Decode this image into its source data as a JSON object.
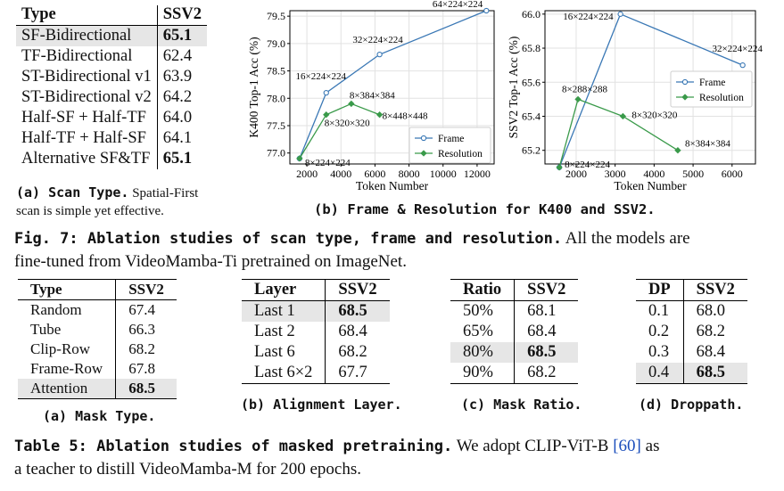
{
  "top_table": {
    "headers": [
      "Type",
      "SSV2"
    ],
    "rows": [
      {
        "type": "SF-Bidirectional",
        "ssv2": "65.1",
        "best": true,
        "highlight": true
      },
      {
        "type": "TF-Bidirectional",
        "ssv2": "62.4"
      },
      {
        "type": "ST-Bidirectional v1",
        "ssv2": "63.9"
      },
      {
        "type": "ST-Bidirectional v2",
        "ssv2": "64.2"
      },
      {
        "type": "Half-SF + Half-TF",
        "ssv2": "64.0"
      },
      {
        "type": "Half-TF + Half-SF",
        "ssv2": "64.1"
      },
      {
        "type": "Alternative SF&TF",
        "ssv2": "65.1",
        "best": true
      }
    ],
    "caption_label": "(a) Scan Type.",
    "caption_line1": "Spatial-First",
    "caption_line2": "scan is simple yet effective."
  },
  "chart_caption": "(b) Frame & Resolution for K400 and SSV2.",
  "chart_data": [
    {
      "type": "line",
      "xlabel": "Token Number",
      "ylabel": "K400 Top-1 Acc (%)",
      "xlim": [
        1000,
        13000
      ],
      "ylim": [
        76.8,
        79.6
      ],
      "xticks": [
        "2000",
        "4000",
        "6000",
        "8000",
        "10000",
        "12000"
      ],
      "yticks": [
        "77.0",
        "77.5",
        "78.0",
        "78.5",
        "79.0",
        "79.5"
      ],
      "legend": "bottom-right",
      "series": [
        {
          "name": "Frame",
          "color": "#3a78b5",
          "x": [
            1568,
            3136,
            6272,
            12544
          ],
          "y": [
            76.9,
            78.1,
            78.8,
            79.6
          ],
          "labels": [
            "8×224×224",
            "16×224×224",
            "32×224×224",
            "64×224×224"
          ]
        },
        {
          "name": "Resolution",
          "color": "#3a9a4a",
          "x": [
            1568,
            3136,
            4608,
            6272
          ],
          "y": [
            76.9,
            77.7,
            77.9,
            77.7
          ],
          "labels": [
            "",
            "8×320×320",
            "8×384×384",
            "8×448×448"
          ]
        }
      ]
    },
    {
      "type": "line",
      "xlabel": "Token Number",
      "ylabel": "SSV2 Top-1 Acc (%)",
      "xlim": [
        1200,
        6600
      ],
      "ylim": [
        65.12,
        66.02
      ],
      "xticks": [
        "2000",
        "3000",
        "4000",
        "5000",
        "6000"
      ],
      "yticks": [
        "65.2",
        "65.4",
        "65.6",
        "65.8",
        "66.0"
      ],
      "legend": "middle-right",
      "series": [
        {
          "name": "Frame",
          "color": "#3a78b5",
          "x": [
            1568,
            3136,
            6272
          ],
          "y": [
            65.1,
            66.0,
            65.7
          ],
          "labels": [
            "8×224×224",
            "16×224×224",
            "32×224×224"
          ]
        },
        {
          "name": "Resolution",
          "color": "#3a9a4a",
          "x": [
            1568,
            2048,
            3200,
            4608
          ],
          "y": [
            65.1,
            65.5,
            65.4,
            65.2
          ],
          "labels": [
            "",
            "8×288×288",
            "8×320×320",
            "8×384×384"
          ]
        }
      ]
    }
  ],
  "fig_caption": {
    "label": "Fig. 7: Ablation studies of scan type, frame and resolution.",
    "text1": "All the models are",
    "text2": "fine-tuned from VideoMamba-Ti pretrained on ImageNet."
  },
  "mask_type": {
    "headers": [
      "Type",
      "SSV2"
    ],
    "rows": [
      {
        "k": "Random",
        "v": "67.4"
      },
      {
        "k": "Tube",
        "v": "66.3"
      },
      {
        "k": "Clip-Row",
        "v": "68.2"
      },
      {
        "k": "Frame-Row",
        "v": "67.8"
      },
      {
        "k": "Attention",
        "v": "68.5",
        "best": true,
        "highlight": true
      }
    ],
    "caption": "(a) Mask Type."
  },
  "align_layer": {
    "headers": [
      "Layer",
      "SSV2"
    ],
    "rows": [
      {
        "k": "Last 1",
        "v": "68.5",
        "best": true,
        "highlight": true
      },
      {
        "k": "Last 2",
        "v": "68.4"
      },
      {
        "k": "Last 6",
        "v": "68.2"
      },
      {
        "k": "Last 6×2",
        "v": "67.7"
      }
    ],
    "caption": "(b) Alignment Layer."
  },
  "mask_ratio": {
    "headers": [
      "Ratio",
      "SSV2"
    ],
    "rows": [
      {
        "k": "50%",
        "v": "68.1"
      },
      {
        "k": "65%",
        "v": "68.4"
      },
      {
        "k": "80%",
        "v": "68.5",
        "best": true,
        "highlight": true
      },
      {
        "k": "90%",
        "v": "68.2"
      }
    ],
    "caption": "(c) Mask Ratio."
  },
  "droppath": {
    "headers": [
      "DP",
      "SSV2"
    ],
    "rows": [
      {
        "k": "0.1",
        "v": "68.0"
      },
      {
        "k": "0.2",
        "v": "68.2"
      },
      {
        "k": "0.3",
        "v": "68.4"
      },
      {
        "k": "0.4",
        "v": "68.5",
        "best": true,
        "highlight": true
      }
    ],
    "caption": "(d) Droppath."
  },
  "table_caption": {
    "label": "Table 5: Ablation studies of masked pretraining.",
    "text1": "We adopt CLIP-ViT-B",
    "cite": "[60]",
    "text2": "as",
    "text3": "a teacher to distill VideoMamba-M for 200 epochs."
  }
}
